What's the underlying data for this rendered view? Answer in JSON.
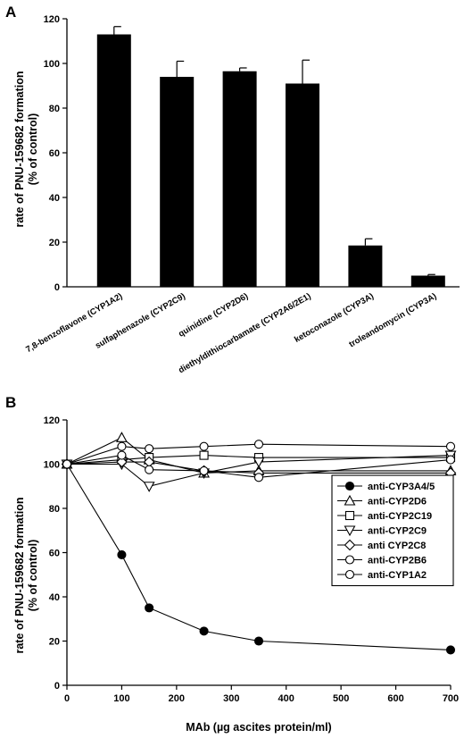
{
  "chart_data": [
    {
      "panel": "A",
      "type": "bar",
      "ylabel_line1": "rate of PNU-159682 formation",
      "ylabel_line2": "(% of control)",
      "ylim": [
        0,
        120
      ],
      "yticks": [
        0,
        20,
        40,
        60,
        80,
        100,
        120
      ],
      "categories": [
        "7,8-benzoflavone (CYP1A2)",
        "sulfaphenazole (CYP2C9)",
        "quinidine (CYP2D6)",
        "diethyldithiocarbamate (CYP2A6/2E1)",
        "ketoconazole (CYP3A)",
        "troleandomycin (CYP3A)"
      ],
      "values": [
        113,
        94,
        96.5,
        91,
        18.5,
        5
      ],
      "errors": [
        3.5,
        7,
        1.5,
        10.5,
        3,
        0.5
      ],
      "bar_color": "#000000",
      "grid": false
    },
    {
      "panel": "B",
      "type": "line",
      "xlabel": "MAb (µg ascites protein/ml)",
      "ylabel_line1": "rate of PNU-159682 formation",
      "ylabel_line2": "(% of control)",
      "xlim": [
        0,
        700
      ],
      "ylim": [
        0,
        120
      ],
      "xticks": [
        0,
        100,
        200,
        300,
        400,
        500,
        600,
        700
      ],
      "yticks": [
        0,
        20,
        40,
        60,
        80,
        100,
        120
      ],
      "legend_position": "right",
      "grid": false,
      "series": [
        {
          "name": "anti-CYP3A4/5",
          "marker": "circle-filled",
          "x": [
            0,
            100,
            150,
            250,
            350,
            700
          ],
          "y": [
            100,
            59,
            35,
            24.5,
            20,
            16
          ]
        },
        {
          "name": "anti-CYP2D6",
          "marker": "triangle-up",
          "x": [
            0,
            100,
            150,
            250,
            350,
            700
          ],
          "y": [
            100,
            112,
            102,
            96,
            97,
            97
          ]
        },
        {
          "name": "anti-CYP2C19",
          "marker": "square",
          "x": [
            0,
            100,
            150,
            250,
            350,
            700
          ],
          "y": [
            100,
            102,
            103,
            104,
            103,
            103
          ]
        },
        {
          "name": "anti-CYP2C9",
          "marker": "triangle-down",
          "x": [
            0,
            100,
            150,
            250,
            350,
            700
          ],
          "y": [
            100,
            100,
            90,
            96,
            101,
            104
          ]
        },
        {
          "name": "anti CYP2C8",
          "marker": "diamond",
          "x": [
            0,
            100,
            150,
            250,
            350,
            700
          ],
          "y": [
            100,
            101,
            101,
            97,
            96,
            96
          ]
        },
        {
          "name": "anti-CYP2B6",
          "marker": "circle-open",
          "x": [
            0,
            100,
            150,
            250,
            350,
            700
          ],
          "y": [
            100,
            108,
            107,
            108,
            109,
            108
          ]
        },
        {
          "name": "anti-CYP1A2",
          "marker": "circle-open",
          "x": [
            0,
            100,
            150,
            250,
            350,
            700
          ],
          "y": [
            100,
            104,
            97.5,
            97,
            94,
            102
          ]
        }
      ]
    }
  ]
}
